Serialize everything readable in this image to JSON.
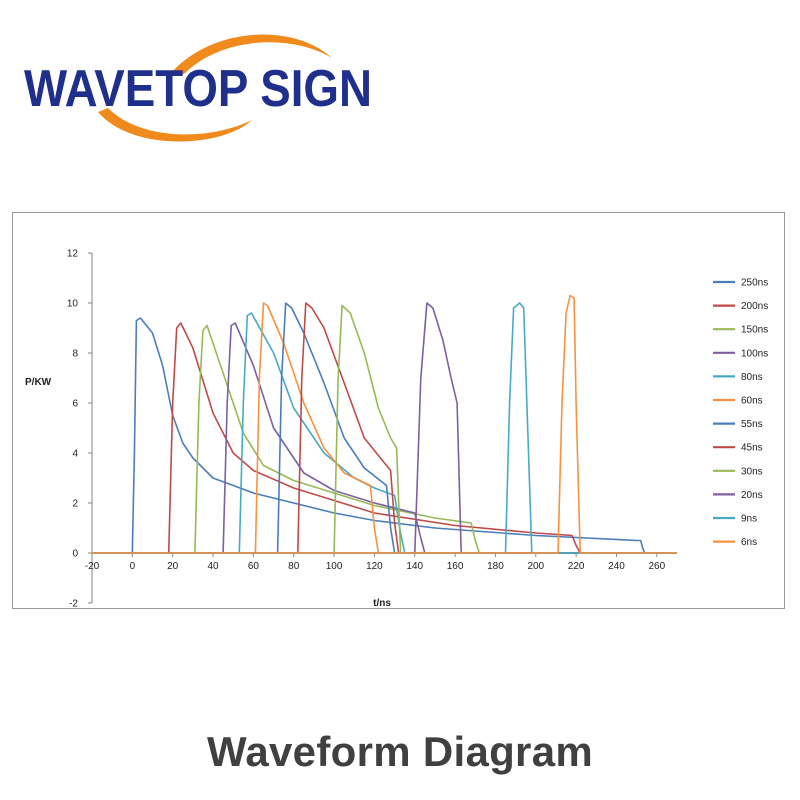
{
  "brand": {
    "name": "WAVETOP SIGN",
    "text_color": "#1f2f8c",
    "swoosh_color": "#f08a1c"
  },
  "caption": "Waveform Diagram",
  "chart_data": {
    "type": "line",
    "title": "",
    "xlabel": "t/ns",
    "ylabel": "P/KW",
    "xlim": [
      -20,
      270
    ],
    "ylim": [
      -2,
      12
    ],
    "xticks": [
      -20,
      0,
      20,
      40,
      60,
      80,
      100,
      120,
      140,
      160,
      180,
      200,
      220,
      240,
      260
    ],
    "yticks": [
      -2,
      0,
      2,
      4,
      6,
      8,
      10,
      12
    ],
    "grid": false,
    "legend_position": "right",
    "series": [
      {
        "name": "250ns",
        "color": "#4a7ebb",
        "x": [
          -20,
          0,
          1,
          2,
          4,
          6,
          10,
          15,
          20,
          25,
          30,
          40,
          60,
          80,
          100,
          120,
          150,
          200,
          250,
          252,
          253,
          254,
          270
        ],
        "y": [
          0,
          0,
          4,
          9.3,
          9.4,
          9.2,
          8.8,
          7.5,
          5.5,
          4.4,
          3.8,
          3.0,
          2.4,
          2.0,
          1.6,
          1.3,
          1.0,
          0.7,
          0.5,
          0.5,
          0.2,
          0,
          0
        ]
      },
      {
        "name": "200ns",
        "color": "#be4b48",
        "x": [
          -20,
          18,
          20,
          22,
          24,
          30,
          40,
          50,
          60,
          80,
          100,
          120,
          160,
          200,
          218,
          220,
          222,
          270
        ],
        "y": [
          0,
          0,
          6,
          9.0,
          9.2,
          8.2,
          5.6,
          4.0,
          3.3,
          2.6,
          2.1,
          1.6,
          1.1,
          0.8,
          0.7,
          0.3,
          0,
          0
        ]
      },
      {
        "name": "150ns",
        "color": "#98b954",
        "x": [
          -20,
          31,
          33,
          35,
          37,
          45,
          55,
          65,
          80,
          100,
          120,
          150,
          168,
          170,
          172,
          270
        ],
        "y": [
          0,
          0,
          6,
          8.9,
          9.1,
          7.2,
          4.8,
          3.5,
          2.9,
          2.4,
          1.9,
          1.4,
          1.2,
          0.5,
          0,
          0
        ]
      },
      {
        "name": "100ns",
        "color": "#7d60a0",
        "x": [
          -20,
          45,
          47,
          49,
          51,
          60,
          70,
          85,
          100,
          120,
          140,
          143,
          145,
          270
        ],
        "y": [
          0,
          0,
          6,
          9.1,
          9.2,
          7.5,
          5.0,
          3.2,
          2.5,
          2.0,
          1.6,
          0.6,
          0,
          0
        ]
      },
      {
        "name": "80ns",
        "color": "#46aac5",
        "x": [
          -20,
          53,
          55,
          57,
          59,
          70,
          80,
          95,
          110,
          120,
          130,
          133,
          135,
          270
        ],
        "y": [
          0,
          0,
          6,
          9.5,
          9.6,
          8.0,
          5.8,
          4.0,
          3.0,
          2.6,
          2.3,
          0.8,
          0,
          0
        ]
      },
      {
        "name": "60ns",
        "color": "#f69240",
        "x": [
          -20,
          61,
          63,
          65,
          67,
          75,
          85,
          95,
          105,
          118,
          120,
          122,
          270
        ],
        "y": [
          0,
          0,
          7,
          10.0,
          9.9,
          8.4,
          6.0,
          4.2,
          3.2,
          2.7,
          1.0,
          0,
          0
        ]
      },
      {
        "name": "55ns",
        "color": "#4a7ebb",
        "x": [
          -20,
          72,
          74,
          76,
          79,
          85,
          95,
          105,
          115,
          126,
          128,
          130,
          270
        ],
        "y": [
          0,
          0,
          7,
          10.0,
          9.8,
          8.8,
          6.8,
          4.6,
          3.4,
          2.7,
          1.0,
          0,
          0
        ]
      },
      {
        "name": "45ns",
        "color": "#be4b48",
        "x": [
          -20,
          82,
          84,
          86,
          89,
          95,
          105,
          115,
          125,
          128,
          130,
          132,
          270
        ],
        "y": [
          0,
          0,
          7,
          10.0,
          9.8,
          9.0,
          6.8,
          4.6,
          3.6,
          3.3,
          1.2,
          0,
          0
        ]
      },
      {
        "name": "30ns",
        "color": "#98b954",
        "x": [
          -20,
          100,
          102,
          104,
          108,
          115,
          122,
          128,
          131,
          133,
          270
        ],
        "y": [
          0,
          0,
          7,
          9.9,
          9.6,
          8.0,
          5.8,
          4.6,
          4.2,
          0,
          0
        ]
      },
      {
        "name": "20ns",
        "color": "#7d60a0",
        "x": [
          -20,
          140,
          143,
          146,
          149,
          154,
          158,
          161,
          163,
          270
        ],
        "y": [
          0,
          0,
          7,
          10.0,
          9.8,
          8.5,
          7.0,
          6.0,
          0,
          0
        ]
      },
      {
        "name": "9ns",
        "color": "#46aac5",
        "x": [
          -20,
          185,
          187,
          189,
          192,
          194,
          196,
          198,
          270
        ],
        "y": [
          0,
          0,
          6,
          9.8,
          10.0,
          9.8,
          5.0,
          0,
          0
        ]
      },
      {
        "name": "6ns",
        "color": "#f69240",
        "x": [
          -20,
          211,
          213,
          215,
          217,
          219,
          220,
          222,
          270
        ],
        "y": [
          0,
          0,
          6,
          9.6,
          10.3,
          10.2,
          6.0,
          0,
          0
        ]
      }
    ]
  }
}
